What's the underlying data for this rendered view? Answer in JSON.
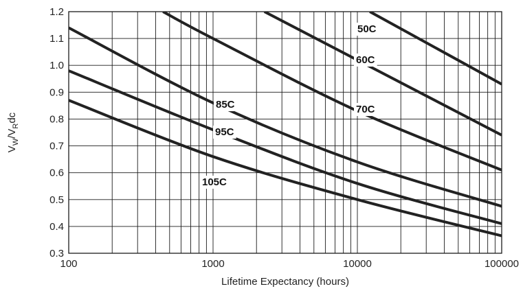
{
  "chart_data": {
    "type": "line",
    "x_scale": "log",
    "xlim": [
      100,
      100000
    ],
    "ylim": [
      0.3,
      1.2
    ],
    "grid": true,
    "legend": "none",
    "xlabel": "Lifetime Expectancy (hours)",
    "ylabel": {
      "main": "V",
      "sub1": "W",
      "mid": "/V",
      "sub2": "R",
      "tail": "dc"
    },
    "x_ticks": [
      {
        "value": 100,
        "label": "100"
      },
      {
        "value": 1000,
        "label": "1000"
      },
      {
        "value": 10000,
        "label": "10000"
      },
      {
        "value": 100000,
        "label": "100000"
      }
    ],
    "y_ticks": [
      {
        "value": 0.3,
        "label": "0.3"
      },
      {
        "value": 0.4,
        "label": "0.4"
      },
      {
        "value": 0.5,
        "label": "0.5"
      },
      {
        "value": 0.6,
        "label": "0.6"
      },
      {
        "value": 0.7,
        "label": "0.7"
      },
      {
        "value": 0.8,
        "label": "0.8"
      },
      {
        "value": 0.9,
        "label": "0.9"
      },
      {
        "value": 1.0,
        "label": "1.0"
      },
      {
        "value": 1.1,
        "label": "1.1"
      },
      {
        "value": 1.2,
        "label": "1.2"
      }
    ],
    "series": [
      {
        "name": "50C",
        "x": [
          12200,
          100000
        ],
        "y": [
          1.2,
          0.93
        ]
      },
      {
        "name": "60C",
        "x": [
          2270,
          100000
        ],
        "y": [
          1.2,
          0.74
        ]
      },
      {
        "name": "70C",
        "x": [
          450,
          1000,
          10000,
          100000
        ],
        "y": [
          1.2,
          1.1,
          0.83,
          0.61
        ]
      },
      {
        "name": "85C",
        "x": [
          100,
          1000,
          10000,
          100000
        ],
        "y": [
          1.14,
          0.86,
          0.64,
          0.475
        ]
      },
      {
        "name": "95C",
        "x": [
          100,
          1000,
          10000,
          100000
        ],
        "y": [
          0.98,
          0.76,
          0.56,
          0.41
        ]
      },
      {
        "name": "105C",
        "x": [
          100,
          1000,
          10000,
          100000
        ],
        "y": [
          0.87,
          0.66,
          0.5,
          0.365
        ]
      }
    ]
  }
}
